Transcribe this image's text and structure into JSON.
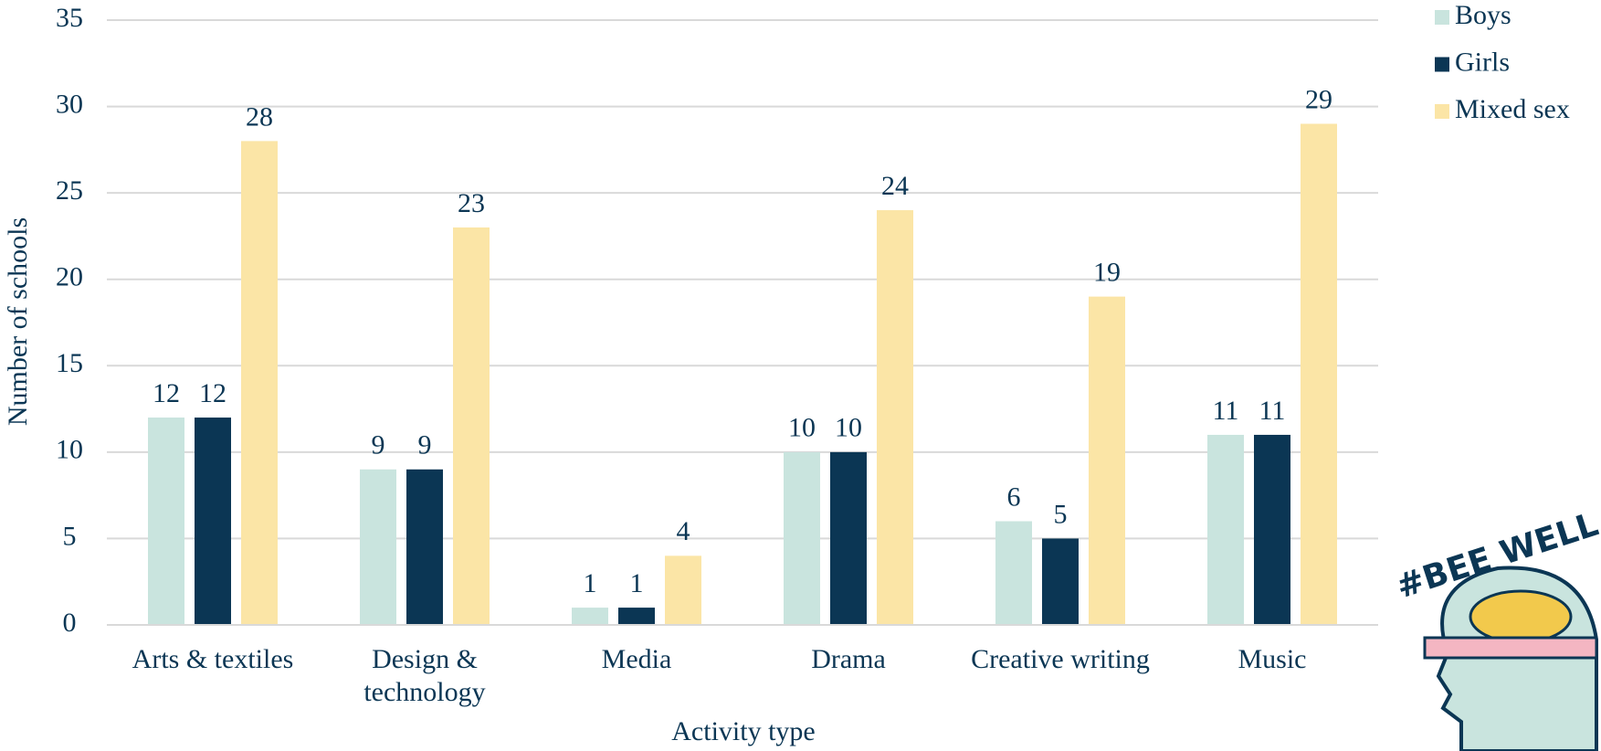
{
  "chart_data": {
    "type": "bar",
    "x_label": "Activity type",
    "y_label": "Number of schools",
    "categories": [
      "Arts & textiles",
      "Design & technology",
      "Media",
      "Drama",
      "Creative writing",
      "Music"
    ],
    "series": [
      {
        "name": "Boys",
        "color": "#c9e4de",
        "values": [
          12,
          9,
          1,
          10,
          6,
          11
        ]
      },
      {
        "name": "Girls",
        "color": "#0b3654",
        "values": [
          12,
          9,
          1,
          10,
          5,
          11
        ]
      },
      {
        "name": "Mixed sex",
        "color": "#fbe5a6",
        "values": [
          28,
          23,
          4,
          24,
          19,
          29
        ]
      }
    ],
    "ylim": [
      0,
      35
    ],
    "yticks": [
      0,
      5,
      10,
      15,
      20,
      25,
      30,
      35
    ],
    "grid": true,
    "legend": "top-right"
  },
  "logo": {
    "text": "#BEE WELL"
  }
}
